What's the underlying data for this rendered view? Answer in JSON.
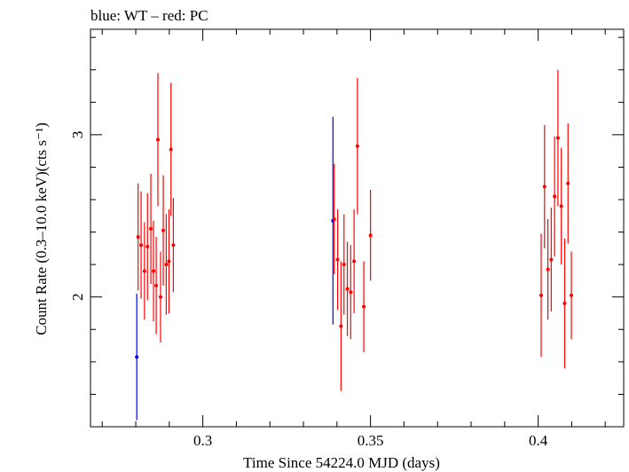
{
  "chart_data": {
    "type": "scatter",
    "title": "blue: WT – red: PC",
    "xlabel": "Time Since 54224.0 MJD (days)",
    "ylabel": "Count Rate (0.3–10.0 keV)(cts s⁻¹)",
    "xlim": [
      0.2665,
      0.4255
    ],
    "ylim": [
      1.2,
      3.65
    ],
    "x_ticks": [
      0.3,
      0.35,
      0.4
    ],
    "x_tick_labels": [
      "0.3",
      "0.35",
      "0.4"
    ],
    "y_ticks": [
      2,
      3
    ],
    "y_tick_labels": [
      "2",
      "3"
    ],
    "grid": false,
    "legend": "none",
    "series": [
      {
        "color": "#0000ff",
        "points": [
          {
            "x": 0.2803,
            "y": 1.63,
            "err": 0.39
          },
          {
            "x": 0.3388,
            "y": 2.47,
            "err": 0.64
          }
        ]
      },
      {
        "color": "#ff0000",
        "points": [
          {
            "x": 0.2807,
            "y": 2.37,
            "err": 0.33
          },
          {
            "x": 0.2816,
            "y": 2.32,
            "err": 0.33
          },
          {
            "x": 0.2826,
            "y": 2.16,
            "err": 0.3
          },
          {
            "x": 0.2835,
            "y": 2.31,
            "err": 0.33
          },
          {
            "x": 0.2845,
            "y": 2.42,
            "err": 0.34
          },
          {
            "x": 0.2853,
            "y": 2.16,
            "err": 0.31
          },
          {
            "x": 0.2861,
            "y": 2.07,
            "err": 0.3
          },
          {
            "x": 0.2866,
            "y": 2.97,
            "err": 0.41
          },
          {
            "x": 0.2874,
            "y": 2.0,
            "err": 0.28
          },
          {
            "x": 0.2882,
            "y": 2.41,
            "err": 0.34
          },
          {
            "x": 0.2891,
            "y": 2.2,
            "err": 0.31
          },
          {
            "x": 0.2899,
            "y": 2.22,
            "err": 0.32
          },
          {
            "x": 0.2905,
            "y": 2.91,
            "err": 0.41
          },
          {
            "x": 0.2912,
            "y": 2.32,
            "err": 0.29
          },
          {
            "x": 0.3392,
            "y": 2.48,
            "err": 0.34
          },
          {
            "x": 0.3402,
            "y": 2.23,
            "err": 0.31
          },
          {
            "x": 0.3412,
            "y": 1.82,
            "err": 0.4
          },
          {
            "x": 0.3421,
            "y": 2.2,
            "err": 0.31
          },
          {
            "x": 0.3431,
            "y": 2.05,
            "err": 0.29
          },
          {
            "x": 0.3441,
            "y": 2.03,
            "err": 0.29
          },
          {
            "x": 0.3451,
            "y": 2.22,
            "err": 0.32
          },
          {
            "x": 0.3461,
            "y": 2.93,
            "err": 0.42
          },
          {
            "x": 0.348,
            "y": 1.94,
            "err": 0.28
          },
          {
            "x": 0.35,
            "y": 2.38,
            "err": 0.28
          },
          {
            "x": 0.4009,
            "y": 2.01,
            "err": 0.38
          },
          {
            "x": 0.4019,
            "y": 2.68,
            "err": 0.38
          },
          {
            "x": 0.4029,
            "y": 2.17,
            "err": 0.31
          },
          {
            "x": 0.4039,
            "y": 2.23,
            "err": 0.32
          },
          {
            "x": 0.4049,
            "y": 2.62,
            "err": 0.37
          },
          {
            "x": 0.4059,
            "y": 2.98,
            "err": 0.42
          },
          {
            "x": 0.4069,
            "y": 2.56,
            "err": 0.36
          },
          {
            "x": 0.4079,
            "y": 1.96,
            "err": 0.4
          },
          {
            "x": 0.4089,
            "y": 2.7,
            "err": 0.37
          },
          {
            "x": 0.4099,
            "y": 2.01,
            "err": 0.27
          }
        ]
      }
    ]
  }
}
